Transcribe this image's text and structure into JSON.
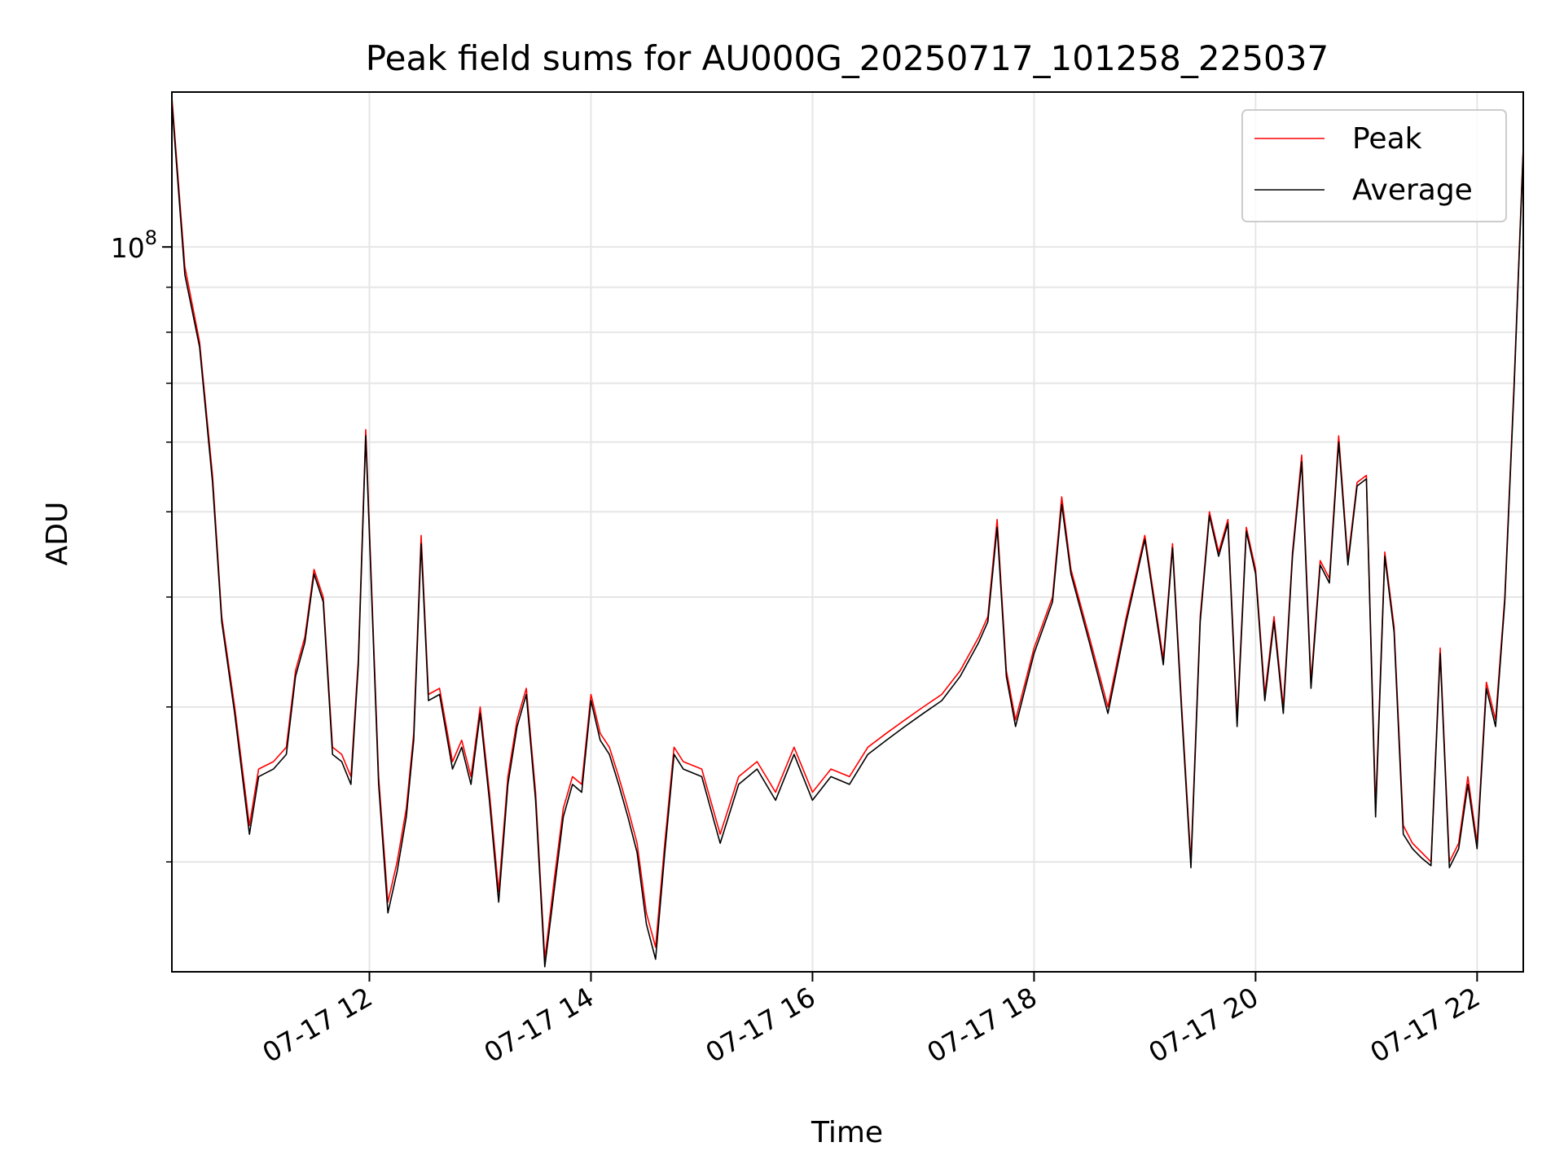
{
  "chart_data": {
    "type": "line",
    "title": "Peak field sums for AU000G_20250717_101258_225037",
    "xlabel": "Time",
    "ylabel": "ADU",
    "yscale": "log",
    "grid": true,
    "legend_position": "top-right",
    "xlim": [
      "2025-07-17 10:13",
      "2025-07-17 22:25"
    ],
    "ylim": [
      15000000,
      150000000
    ],
    "x_ticks": [
      {
        "value": "2025-07-17 12:00",
        "label": "07-17 12"
      },
      {
        "value": "2025-07-17 14:00",
        "label": "07-17 14"
      },
      {
        "value": "2025-07-17 16:00",
        "label": "07-17 16"
      },
      {
        "value": "2025-07-17 18:00",
        "label": "07-17 18"
      },
      {
        "value": "2025-07-17 20:00",
        "label": "07-17 20"
      },
      {
        "value": "2025-07-17 22:00",
        "label": "07-17 22"
      }
    ],
    "y_ticks": [
      {
        "value": 100000000,
        "label_base": "10",
        "label_exp": "8"
      }
    ],
    "y_minor_ticks": [
      20000000,
      30000000,
      40000000,
      50000000,
      60000000,
      70000000,
      80000000,
      90000000
    ],
    "colors": {
      "peak": "#ff0000",
      "average": "#000000",
      "grid": "#e6e6e6"
    },
    "x": [
      "2025-07-17 10:13",
      "2025-07-17 10:20",
      "2025-07-17 10:28",
      "2025-07-17 10:35",
      "2025-07-17 10:40",
      "2025-07-17 10:47",
      "2025-07-17 10:55",
      "2025-07-17 11:00",
      "2025-07-17 11:08",
      "2025-07-17 11:15",
      "2025-07-17 11:20",
      "2025-07-17 11:25",
      "2025-07-17 11:30",
      "2025-07-17 11:35",
      "2025-07-17 11:40",
      "2025-07-17 11:45",
      "2025-07-17 11:50",
      "2025-07-17 11:54",
      "2025-07-17 11:58",
      "2025-07-17 12:05",
      "2025-07-17 12:10",
      "2025-07-17 12:15",
      "2025-07-17 12:20",
      "2025-07-17 12:24",
      "2025-07-17 12:28",
      "2025-07-17 12:32",
      "2025-07-17 12:38",
      "2025-07-17 12:45",
      "2025-07-17 12:50",
      "2025-07-17 12:55",
      "2025-07-17 13:00",
      "2025-07-17 13:05",
      "2025-07-17 13:10",
      "2025-07-17 13:15",
      "2025-07-17 13:20",
      "2025-07-17 13:25",
      "2025-07-17 13:30",
      "2025-07-17 13:35",
      "2025-07-17 13:40",
      "2025-07-17 13:45",
      "2025-07-17 13:50",
      "2025-07-17 13:55",
      "2025-07-17 14:00",
      "2025-07-17 14:05",
      "2025-07-17 14:10",
      "2025-07-17 14:15",
      "2025-07-17 14:20",
      "2025-07-17 14:25",
      "2025-07-17 14:30",
      "2025-07-17 14:35",
      "2025-07-17 14:40",
      "2025-07-17 14:45",
      "2025-07-17 14:50",
      "2025-07-17 15:00",
      "2025-07-17 15:10",
      "2025-07-17 15:20",
      "2025-07-17 15:30",
      "2025-07-17 15:40",
      "2025-07-17 15:50",
      "2025-07-17 16:00",
      "2025-07-17 16:10",
      "2025-07-17 16:20",
      "2025-07-17 16:30",
      "2025-07-17 16:40",
      "2025-07-17 16:50",
      "2025-07-17 17:00",
      "2025-07-17 17:10",
      "2025-07-17 17:20",
      "2025-07-17 17:30",
      "2025-07-17 17:35",
      "2025-07-17 17:40",
      "2025-07-17 17:45",
      "2025-07-17 17:50",
      "2025-07-17 18:00",
      "2025-07-17 18:10",
      "2025-07-17 18:15",
      "2025-07-17 18:20",
      "2025-07-17 18:30",
      "2025-07-17 18:40",
      "2025-07-17 18:50",
      "2025-07-17 19:00",
      "2025-07-17 19:10",
      "2025-07-17 19:15",
      "2025-07-17 19:20",
      "2025-07-17 19:25",
      "2025-07-17 19:30",
      "2025-07-17 19:35",
      "2025-07-17 19:40",
      "2025-07-17 19:45",
      "2025-07-17 19:50",
      "2025-07-17 19:55",
      "2025-07-17 20:00",
      "2025-07-17 20:05",
      "2025-07-17 20:10",
      "2025-07-17 20:15",
      "2025-07-17 20:20",
      "2025-07-17 20:25",
      "2025-07-17 20:30",
      "2025-07-17 20:35",
      "2025-07-17 20:40",
      "2025-07-17 20:45",
      "2025-07-17 20:50",
      "2025-07-17 20:55",
      "2025-07-17 21:00",
      "2025-07-17 21:05",
      "2025-07-17 21:10",
      "2025-07-17 21:15",
      "2025-07-17 21:20",
      "2025-07-17 21:25",
      "2025-07-17 21:30",
      "2025-07-17 21:35",
      "2025-07-17 21:40",
      "2025-07-17 21:45",
      "2025-07-17 21:50",
      "2025-07-17 21:55",
      "2025-07-17 22:00",
      "2025-07-17 22:05",
      "2025-07-17 22:10",
      "2025-07-17 22:15",
      "2025-07-17 22:20",
      "2025-07-17 22:25"
    ],
    "series": [
      {
        "name": "Peak",
        "values": [
          148000000,
          95000000,
          78000000,
          55000000,
          38000000,
          30000000,
          22000000,
          25500000,
          26000000,
          27000000,
          33000000,
          36000000,
          43000000,
          40000000,
          27000000,
          26500000,
          25000000,
          34000000,
          62000000,
          25000000,
          18000000,
          20000000,
          23000000,
          28000000,
          47000000,
          31000000,
          31500000,
          26000000,
          27500000,
          25000000,
          30000000,
          24000000,
          18500000,
          25000000,
          29000000,
          31500000,
          24000000,
          15500000,
          19000000,
          23000000,
          25000000,
          24500000,
          31000000,
          28000000,
          27000000,
          25000000,
          23000000,
          21000000,
          17500000,
          16000000,
          21000000,
          27000000,
          26000000,
          25500000,
          21500000,
          25000000,
          26000000,
          24000000,
          27000000,
          24000000,
          25500000,
          25000000,
          27000000,
          28000000,
          29000000,
          30000000,
          31000000,
          33000000,
          36000000,
          38000000,
          49000000,
          33000000,
          29000000,
          35000000,
          40000000,
          52000000,
          43000000,
          36000000,
          30000000,
          38000000,
          47000000,
          34000000,
          46000000,
          30000000,
          20000000,
          38000000,
          50000000,
          45000000,
          49000000,
          29000000,
          48000000,
          43000000,
          31000000,
          38000000,
          30000000,
          45000000,
          58000000,
          32000000,
          44000000,
          42000000,
          61000000,
          44000000,
          54000000,
          55000000,
          23000000,
          45000000,
          37000000,
          22000000,
          21000000,
          20500000,
          20000000,
          35000000,
          20000000,
          21000000,
          25000000,
          21000000,
          32000000,
          29000000,
          40000000,
          70000000,
          130000000
        ]
      },
      {
        "name": "Average",
        "values": [
          146000000,
          93000000,
          77000000,
          54000000,
          37500000,
          29500000,
          21500000,
          25000000,
          25500000,
          26500000,
          32500000,
          35500000,
          42500000,
          39500000,
          26500000,
          26000000,
          24500000,
          33500000,
          61000000,
          24500000,
          17500000,
          19500000,
          22500000,
          27500000,
          46000000,
          30500000,
          31000000,
          25500000,
          27000000,
          24500000,
          29500000,
          23500000,
          18000000,
          24500000,
          28500000,
          31000000,
          23500000,
          15200000,
          18500000,
          22500000,
          24500000,
          24000000,
          30500000,
          27500000,
          26500000,
          24500000,
          22500000,
          20500000,
          17000000,
          15500000,
          20500000,
          26500000,
          25500000,
          25000000,
          21000000,
          24500000,
          25500000,
          23500000,
          26500000,
          23500000,
          25000000,
          24500000,
          26500000,
          27500000,
          28500000,
          29500000,
          30500000,
          32500000,
          35500000,
          37500000,
          48000000,
          32500000,
          28500000,
          34500000,
          39500000,
          51000000,
          42500000,
          35500000,
          29500000,
          37500000,
          46500000,
          33500000,
          45500000,
          29500000,
          19700000,
          37500000,
          49500000,
          44500000,
          48500000,
          28500000,
          47500000,
          42500000,
          30500000,
          37500000,
          29500000,
          44500000,
          57000000,
          31500000,
          43500000,
          41500000,
          60000000,
          43500000,
          53500000,
          54500000,
          22500000,
          44500000,
          36500000,
          21500000,
          20700000,
          20200000,
          19800000,
          34500000,
          19700000,
          20700000,
          24500000,
          20700000,
          31500000,
          28500000,
          39500000,
          69000000,
          129000000
        ]
      }
    ]
  }
}
